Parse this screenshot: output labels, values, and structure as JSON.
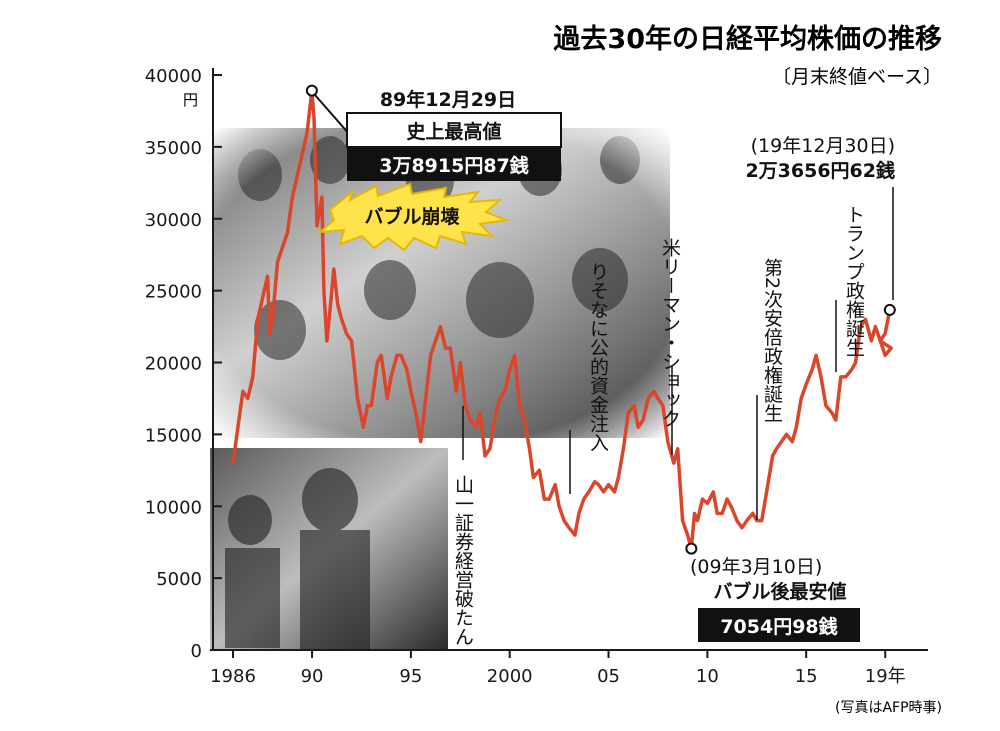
{
  "chart_data": {
    "type": "line",
    "title": "過去30年の日経平均株価の推移",
    "subtitle": "〔月末終値ベース〕",
    "ylabel_unit": "円",
    "ylim": [
      0,
      40000
    ],
    "xlim": [
      1986,
      2020
    ],
    "y_ticks": [
      0,
      5000,
      10000,
      15000,
      20000,
      25000,
      30000,
      35000,
      40000
    ],
    "y_tick_labels": [
      "0",
      "5000",
      "10000",
      "15000",
      "20000",
      "25000",
      "30000",
      "35000",
      "40000"
    ],
    "x_ticks": [
      1986,
      1990,
      1995,
      2000,
      2005,
      2010,
      2015,
      2019
    ],
    "x_tick_labels": [
      "1986",
      "90",
      "95",
      "2000",
      "05",
      "10",
      "15",
      "19年"
    ],
    "line_color": "#d9462b",
    "series": [
      {
        "x": [
          1986.0,
          1986.25,
          1986.5,
          1986.75,
          1987.0,
          1987.25,
          1987.5,
          1987.75,
          1987.85,
          1988.0,
          1988.25,
          1988.5,
          1988.75,
          1989.0,
          1989.25,
          1989.5,
          1989.75,
          1989.99,
          1990.1,
          1990.25,
          1990.5,
          1990.6,
          1990.75,
          1990.9,
          1991.1,
          1991.3,
          1991.5,
          1991.75,
          1992.0,
          1992.3,
          1992.6,
          1992.8,
          1993.0,
          1993.3,
          1993.5,
          1993.8,
          1994.0,
          1994.3,
          1994.5,
          1994.8,
          1995.0,
          1995.25,
          1995.5,
          1995.75,
          1996.0,
          1996.5,
          1996.75,
          1997.0,
          1997.3,
          1997.5,
          1997.75,
          1998.0,
          1998.3,
          1998.5,
          1998.75,
          1999.0,
          1999.3,
          1999.5,
          1999.75,
          2000.0,
          2000.25,
          2000.5,
          2000.75,
          2001.0,
          2001.2,
          2001.5,
          2001.75,
          2002.0,
          2002.3,
          2002.5,
          2002.75,
          2003.0,
          2003.3,
          2003.5,
          2003.75,
          2004.0,
          2004.3,
          2004.5,
          2004.75,
          2005.0,
          2005.3,
          2005.5,
          2005.75,
          2006.0,
          2006.3,
          2006.5,
          2006.75,
          2007.0,
          2007.3,
          2007.5,
          2007.75,
          2008.0,
          2008.3,
          2008.5,
          2008.75,
          2009.0,
          2009.19,
          2009.35,
          2009.5,
          2009.75,
          2010.0,
          2010.3,
          2010.5,
          2010.75,
          2011.0,
          2011.2,
          2011.5,
          2011.75,
          2012.0,
          2012.3,
          2012.5,
          2012.75,
          2013.0,
          2013.3,
          2013.5,
          2013.75,
          2014.0,
          2014.3,
          2014.5,
          2014.75,
          2015.0,
          2015.3,
          2015.5,
          2015.75,
          2016.0,
          2016.3,
          2016.5,
          2016.75,
          2017.0,
          2017.3,
          2017.5,
          2017.75,
          2018.0,
          2018.3,
          2018.5,
          2018.75,
          2019.0,
          2019.3,
          2019.5,
          2019.75,
          2019.99
        ],
        "y": [
          13000,
          15500,
          18000,
          17500,
          19000,
          23000,
          24500,
          26000,
          22000,
          23000,
          27000,
          28000,
          29000,
          31500,
          33000,
          34500,
          36000,
          38916,
          37000,
          29500,
          31500,
          25000,
          21500,
          23500,
          26500,
          24000,
          23000,
          22000,
          21500,
          17500,
          15500,
          17000,
          17000,
          20000,
          20500,
          17500,
          19000,
          20500,
          20500,
          19500,
          18000,
          16500,
          14500,
          17500,
          20500,
          22500,
          21000,
          21000,
          18000,
          20000,
          17000,
          16000,
          15500,
          16500,
          13500,
          14000,
          16500,
          17500,
          18000,
          19500,
          20500,
          17000,
          16000,
          14000,
          12000,
          12500,
          10500,
          10500,
          11500,
          10000,
          9000,
          8500,
          8000,
          9500,
          10500,
          11000,
          11700,
          11500,
          11000,
          11500,
          11000,
          12000,
          14000,
          16500,
          17000,
          15500,
          16000,
          17500,
          18000,
          17500,
          17000,
          14500,
          13000,
          14000,
          9000,
          8000,
          7054,
          9500,
          9000,
          10500,
          10200,
          11000,
          9500,
          9500,
          10500,
          10000,
          9000,
          8500,
          9000,
          9500,
          9000,
          9000,
          11000,
          13500,
          14000,
          14500,
          15000,
          14500,
          15500,
          17500,
          18500,
          19500,
          20500,
          19000,
          17000,
          16500,
          16000,
          19000,
          19000,
          19500,
          20000,
          22500,
          23000,
          21500,
          22500,
          21500,
          20500,
          21000,
          21500,
          22000,
          23657
        ]
      }
    ],
    "annotations": {
      "peak_date": "89年12月29日",
      "peak_title": "史上最高値",
      "peak_value": "3万8915円87銭",
      "bubble_burst": "バブル崩壊",
      "yamaichi": "山一証券経営破たん",
      "resona": "りそなに公的資金注入",
      "lehman": "米リーマン・ショック",
      "low_date": "(09年3月10日)",
      "low_title": "バブル後最安値",
      "low_value": "7054円98銭",
      "abe": "第2次安倍政権誕生",
      "trump": "トランプ政権誕生",
      "latest_date": "(19年12月30日)",
      "latest_value": "2万3656円62銭"
    }
  },
  "credit": "(写真はAFP時事)",
  "photos": {
    "top_alt": "trading floor crowd photo",
    "bottom_alt": "press conference bowing photo"
  }
}
